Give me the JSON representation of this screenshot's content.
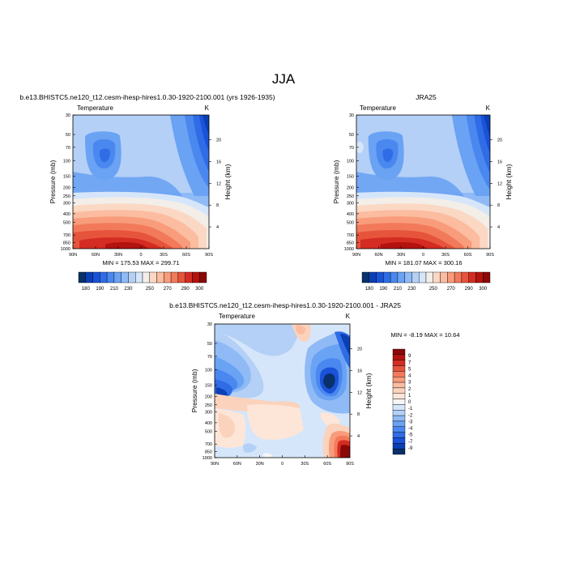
{
  "figure": {
    "title": "JJA"
  },
  "colors": {
    "abs_fill": [
      "#08306b",
      "#0a3fb5",
      "#1a52d8",
      "#2f6ce6",
      "#4a88f0",
      "#6aa2f4",
      "#8fbaf6",
      "#b4d0f6",
      "#d6e6fa",
      "#f3eee8",
      "#fbd8c4",
      "#fbbca0",
      "#f89c7c",
      "#f27a5a",
      "#e6543c",
      "#d42c22",
      "#b3130f",
      "#8a0808"
    ],
    "diff_fill": [
      "#08306b",
      "#0a3fb5",
      "#1a52d8",
      "#2f6ce6",
      "#4a88f0",
      "#6aa2f4",
      "#8fbaf6",
      "#b4d0f6",
      "#d6e6fa",
      "#f5f5f5",
      "#fde6d8",
      "#fbd2bc",
      "#fbbca0",
      "#f89c7c",
      "#f27a5a",
      "#e6543c",
      "#d42c22",
      "#b3130f",
      "#8a0808"
    ]
  },
  "chart_data": [
    {
      "id": "model",
      "type": "heatmap",
      "title": "b.e13.BHISTC5.ne120_t12.cesm-ihesp-hires1.0.30-1920-2100.001 (yrs 1926-1935)",
      "subtitle_left": "Temperature",
      "subtitle_right": "K",
      "xlabel": "",
      "ylabel": "Pressure (mb)",
      "ylabel_right": "Height (km)",
      "x_ticks": [
        "90N",
        "60N",
        "30N",
        "0",
        "30S",
        "60S",
        "90S"
      ],
      "x_tick_values": [
        90,
        60,
        30,
        0,
        -30,
        -60,
        -90
      ],
      "y_ticks": [
        30,
        50,
        70,
        100,
        150,
        200,
        250,
        300,
        400,
        500,
        700,
        850,
        1000
      ],
      "y_scale": "log",
      "ylim": [
        1000,
        30
      ],
      "right_ticks": [
        4,
        8,
        12,
        16,
        20
      ],
      "min_max_text": "MIN = 175.53   MAX = 299.71",
      "min": 175.53,
      "max": 299.71,
      "levels": [
        180,
        185,
        190,
        195,
        200,
        205,
        210,
        215,
        220,
        225,
        230,
        235,
        240,
        245,
        250,
        255,
        260,
        265,
        270,
        275,
        280,
        285,
        290,
        295,
        300
      ],
      "colorbar_labels": [
        180,
        190,
        210,
        230,
        250,
        270,
        290,
        300
      ]
    },
    {
      "id": "obs",
      "type": "heatmap",
      "title": "JRA25",
      "subtitle_left": "Temperature",
      "subtitle_right": "K",
      "xlabel": "",
      "ylabel": "Pressure (mb)",
      "ylabel_right": "Height (km)",
      "x_ticks": [
        "90N",
        "60N",
        "30N",
        "0",
        "30S",
        "60S",
        "90S"
      ],
      "x_tick_values": [
        90,
        60,
        30,
        0,
        -30,
        -60,
        -90
      ],
      "y_ticks": [
        30,
        50,
        70,
        100,
        150,
        200,
        250,
        300,
        400,
        500,
        700,
        850,
        1000
      ],
      "y_scale": "log",
      "ylim": [
        1000,
        30
      ],
      "right_ticks": [
        4,
        8,
        12,
        16,
        20
      ],
      "min_max_text": "MIN = 181.07   MAX = 300.16",
      "min": 181.07,
      "max": 300.16,
      "colorbar_labels": [
        180,
        190,
        210,
        230,
        250,
        270,
        290,
        300
      ]
    },
    {
      "id": "diff",
      "type": "heatmap",
      "title": "b.e13.BHISTC5.ne120_t12.cesm-ihesp-hires1.0.30-1920-2100.001 - JRA25",
      "subtitle_left": "Temperature",
      "subtitle_right": "K",
      "xlabel": "",
      "ylabel": "Pressure (mb)",
      "ylabel_right": "Height (km)",
      "x_ticks": [
        "90N",
        "60N",
        "30N",
        "0",
        "30S",
        "60S",
        "90S"
      ],
      "x_tick_values": [
        90,
        60,
        30,
        0,
        -30,
        -60,
        -90
      ],
      "y_ticks": [
        30,
        50,
        70,
        100,
        150,
        200,
        250,
        300,
        400,
        500,
        700,
        850,
        1000
      ],
      "y_scale": "log",
      "ylim": [
        1000,
        30
      ],
      "right_ticks": [
        4,
        8,
        12,
        16,
        20
      ],
      "min_max_text": "MIN =  -8.19   MAX =  10.64",
      "min": -8.19,
      "max": 10.64,
      "colorbar_labels": [
        9,
        7,
        5,
        4,
        3,
        2,
        1,
        0,
        -1,
        -2,
        -3,
        -4,
        -5,
        -7,
        -9
      ]
    }
  ]
}
